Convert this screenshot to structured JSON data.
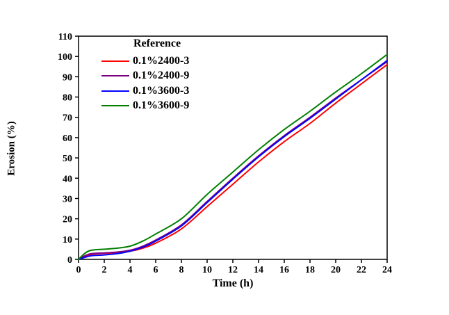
{
  "figure": {
    "background": "#ffffff",
    "axis_color": "#000000",
    "text_color": "#000000"
  },
  "chart_data": {
    "type": "line",
    "title": "",
    "xlabel": "Time (h)",
    "ylabel": "Erosion (%)",
    "xlim": [
      0,
      24
    ],
    "ylim": [
      0,
      110
    ],
    "xticks": [
      0,
      2,
      4,
      6,
      8,
      10,
      12,
      14,
      16,
      18,
      20,
      22,
      24
    ],
    "yticks": [
      0,
      10,
      20,
      30,
      40,
      50,
      60,
      70,
      80,
      90,
      100,
      110
    ],
    "grid": false,
    "legend_title": "Reference",
    "legend_position": "inside-top-left",
    "x": [
      0,
      0.5,
      1,
      2,
      3,
      4,
      5,
      6,
      8,
      10,
      12,
      14,
      16,
      18,
      20,
      22,
      24
    ],
    "series": [
      {
        "name": "0.1%2400-3",
        "color": "#FF0000",
        "values": [
          0,
          1.5,
          2.5,
          3,
          3.3,
          4,
          5.5,
          8,
          15,
          26,
          37,
          48,
          58,
          67,
          77,
          86.5,
          96
        ]
      },
      {
        "name": "0.1%2400-9",
        "color": "#7F007F",
        "values": [
          0,
          1.8,
          2.8,
          3.2,
          3.6,
          4.5,
          6.5,
          9.5,
          17,
          28.5,
          40,
          51,
          61,
          70,
          79.5,
          88.5,
          97.5
        ]
      },
      {
        "name": "0.1%3600-3",
        "color": "#0000FF",
        "values": [
          0,
          1,
          1.8,
          2.2,
          2.8,
          4,
          6,
          9,
          16.5,
          28,
          39.5,
          50.5,
          60.5,
          69.5,
          79,
          88.5,
          98
        ]
      },
      {
        "name": "0.1%3600-9",
        "color": "#007F00",
        "values": [
          0,
          3,
          4.5,
          5,
          5.5,
          6.5,
          9,
          12.5,
          20,
          32,
          43,
          54,
          64,
          73,
          82.5,
          91.5,
          101
        ]
      }
    ]
  }
}
